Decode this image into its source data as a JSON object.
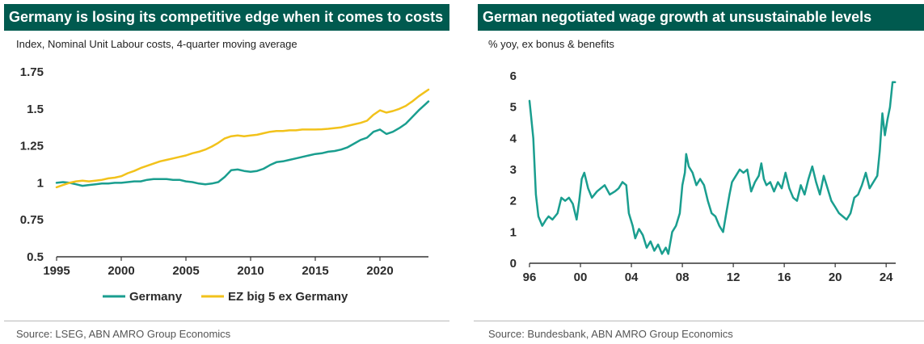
{
  "colors": {
    "title_bg": "#005a4f",
    "germany": "#1a9e8f",
    "ez": "#f2c21b",
    "wage": "#1a9e8f",
    "axis": "#333333"
  },
  "chart_data": [
    {
      "type": "line",
      "title": "Germany is losing its competitive edge when it comes to costs",
      "subtitle": "Index, Nominal Unit Labour costs, 4-quarter moving average",
      "source": "Source: LSEG, ABN AMRO Group Economics",
      "xlim": [
        1995,
        2023.75
      ],
      "ylim": [
        0.5,
        1.75
      ],
      "x_ticks": [
        1995,
        2000,
        2005,
        2010,
        2015,
        2020
      ],
      "x_tick_labels": [
        "1995",
        "2000",
        "2005",
        "2010",
        "2015",
        "2020"
      ],
      "y_ticks": [
        0.5,
        0.75,
        1,
        1.25,
        1.5,
        1.75
      ],
      "y_tick_labels": [
        "0.5",
        "0.75",
        "1",
        "1.25",
        "1.5",
        "1.75"
      ],
      "legend_position": "bottom",
      "series": [
        {
          "name": "Germany",
          "color": "#1a9e8f",
          "x": [
            1995,
            1995.5,
            1996,
            1996.5,
            1997,
            1997.5,
            1998,
            1998.5,
            1999,
            1999.5,
            2000,
            2000.5,
            2001,
            2001.5,
            2002,
            2002.5,
            2003,
            2003.5,
            2004,
            2004.5,
            2005,
            2005.5,
            2006,
            2006.5,
            2007,
            2007.5,
            2008,
            2008.5,
            2009,
            2009.5,
            2010,
            2010.5,
            2011,
            2011.5,
            2012,
            2012.5,
            2013,
            2013.5,
            2014,
            2014.5,
            2015,
            2015.5,
            2016,
            2016.5,
            2017,
            2017.5,
            2018,
            2018.5,
            2019,
            2019.5,
            2020,
            2020.5,
            2021,
            2021.5,
            2022,
            2022.5,
            2023,
            2023.5,
            2023.75
          ],
          "values": [
            1.0,
            1.005,
            1.0,
            0.99,
            0.98,
            0.985,
            0.99,
            0.995,
            0.995,
            1.0,
            1.0,
            1.005,
            1.01,
            1.01,
            1.02,
            1.025,
            1.025,
            1.025,
            1.02,
            1.02,
            1.01,
            1.005,
            0.995,
            0.99,
            0.995,
            1.005,
            1.04,
            1.085,
            1.09,
            1.08,
            1.075,
            1.08,
            1.095,
            1.12,
            1.14,
            1.145,
            1.155,
            1.165,
            1.175,
            1.185,
            1.195,
            1.2,
            1.21,
            1.215,
            1.225,
            1.24,
            1.265,
            1.29,
            1.305,
            1.345,
            1.36,
            1.33,
            1.345,
            1.37,
            1.4,
            1.445,
            1.49,
            1.53,
            1.55
          ]
        },
        {
          "name": "EZ big 5 ex Germany",
          "color": "#f2c21b",
          "x": [
            1995,
            1995.5,
            1996,
            1996.5,
            1997,
            1997.5,
            1998,
            1998.5,
            1999,
            1999.5,
            2000,
            2000.5,
            2001,
            2001.5,
            2002,
            2002.5,
            2003,
            2003.5,
            2004,
            2004.5,
            2005,
            2005.5,
            2006,
            2006.5,
            2007,
            2007.5,
            2008,
            2008.5,
            2009,
            2009.5,
            2010,
            2010.5,
            2011,
            2011.5,
            2012,
            2012.5,
            2013,
            2013.5,
            2014,
            2014.5,
            2015,
            2015.5,
            2016,
            2016.5,
            2017,
            2017.5,
            2018,
            2018.5,
            2019,
            2019.5,
            2020,
            2020.5,
            2021,
            2021.5,
            2022,
            2022.5,
            2023,
            2023.5,
            2023.75
          ],
          "values": [
            0.97,
            0.985,
            1.0,
            1.01,
            1.015,
            1.01,
            1.015,
            1.02,
            1.03,
            1.035,
            1.045,
            1.065,
            1.08,
            1.1,
            1.115,
            1.13,
            1.145,
            1.155,
            1.165,
            1.175,
            1.185,
            1.2,
            1.21,
            1.225,
            1.245,
            1.27,
            1.3,
            1.315,
            1.32,
            1.315,
            1.32,
            1.325,
            1.335,
            1.345,
            1.35,
            1.35,
            1.355,
            1.355,
            1.36,
            1.36,
            1.36,
            1.362,
            1.365,
            1.37,
            1.375,
            1.385,
            1.395,
            1.405,
            1.42,
            1.46,
            1.49,
            1.475,
            1.485,
            1.5,
            1.52,
            1.55,
            1.585,
            1.615,
            1.63
          ]
        }
      ]
    },
    {
      "type": "line",
      "title": "German negotiated wage growth at unsustainable levels",
      "subtitle": "% yoy, ex bonus & benefits",
      "source": "Source:  Bundesbank, ABN AMRO Group Economics",
      "xlim": [
        1996,
        2024.75
      ],
      "ylim": [
        0,
        6
      ],
      "x_ticks": [
        1996,
        2000,
        2004,
        2008,
        2012,
        2016,
        2020,
        2024
      ],
      "x_tick_labels": [
        "96",
        "00",
        "04",
        "08",
        "12",
        "16",
        "20",
        "24"
      ],
      "y_ticks": [
        0,
        1,
        2,
        3,
        4,
        5,
        6
      ],
      "y_tick_labels": [
        "0",
        "1",
        "2",
        "3",
        "4",
        "5",
        "6"
      ],
      "series": [
        {
          "color": "#1a9e8f",
          "x": [
            1996,
            1996.1,
            1996.3,
            1996.5,
            1996.7,
            1997,
            1997.3,
            1997.5,
            1997.8,
            1998.2,
            1998.5,
            1998.8,
            1999.1,
            1999.4,
            1999.7,
            1999.9,
            2000.1,
            2000.3,
            2000.6,
            2000.9,
            2001.3,
            2001.6,
            2001.9,
            2002.3,
            2002.7,
            2003,
            2003.3,
            2003.6,
            2003.8,
            2004.1,
            2004.3,
            2004.6,
            2004.9,
            2005.2,
            2005.5,
            2005.8,
            2006.1,
            2006.4,
            2006.7,
            2006.9,
            2007.2,
            2007.5,
            2007.8,
            2008,
            2008.2,
            2008.3,
            2008.5,
            2008.8,
            2009.1,
            2009.4,
            2009.7,
            2010,
            2010.3,
            2010.6,
            2010.9,
            2011.2,
            2011.4,
            2011.7,
            2011.9,
            2012.2,
            2012.5,
            2012.8,
            2013.1,
            2013.4,
            2013.7,
            2014,
            2014.2,
            2014.4,
            2014.6,
            2014.9,
            2015.2,
            2015.5,
            2015.8,
            2016.1,
            2016.4,
            2016.7,
            2017,
            2017.3,
            2017.6,
            2017.9,
            2018.2,
            2018.5,
            2018.8,
            2019.1,
            2019.4,
            2019.7,
            2020,
            2020.3,
            2020.6,
            2020.9,
            2021.2,
            2021.5,
            2021.8,
            2022.1,
            2022.4,
            2022.7,
            2023,
            2023.3,
            2023.5,
            2023.7,
            2023.9,
            2024.1,
            2024.3,
            2024.5,
            2024.7
          ],
          "values": [
            5.2,
            4.8,
            4.0,
            2.2,
            1.5,
            1.2,
            1.4,
            1.5,
            1.4,
            1.6,
            2.1,
            2.0,
            2.1,
            1.9,
            1.4,
            2.0,
            2.7,
            2.9,
            2.4,
            2.1,
            2.3,
            2.4,
            2.5,
            2.2,
            2.3,
            2.4,
            2.6,
            2.5,
            1.6,
            1.2,
            0.8,
            1.1,
            0.9,
            0.5,
            0.7,
            0.4,
            0.6,
            0.3,
            0.5,
            0.3,
            1.0,
            1.2,
            1.6,
            2.5,
            2.9,
            3.5,
            3.1,
            2.9,
            2.5,
            2.7,
            2.5,
            2.0,
            1.6,
            1.5,
            1.2,
            1.0,
            1.5,
            2.2,
            2.6,
            2.8,
            3.0,
            2.9,
            3.0,
            2.3,
            2.6,
            2.8,
            3.2,
            2.7,
            2.5,
            2.6,
            2.3,
            2.6,
            2.4,
            2.9,
            2.4,
            2.1,
            2.0,
            2.5,
            2.2,
            2.7,
            3.1,
            2.6,
            2.2,
            2.8,
            2.4,
            2.0,
            1.8,
            1.6,
            1.5,
            1.4,
            1.6,
            2.1,
            2.2,
            2.5,
            2.9,
            2.4,
            2.6,
            2.8,
            3.6,
            4.8,
            4.1,
            4.6,
            5.0,
            5.8,
            5.8
          ]
        }
      ]
    }
  ]
}
